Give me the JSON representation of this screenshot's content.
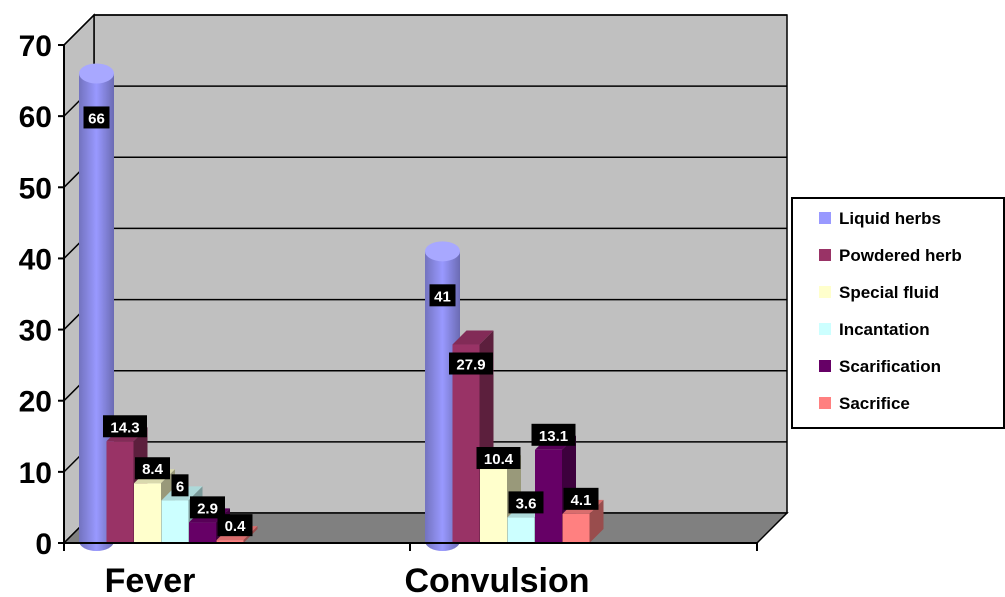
{
  "chart_data": {
    "type": "bar",
    "categories": [
      "Fever",
      "Convulsion"
    ],
    "series": [
      {
        "name": "Liquid herbs",
        "values": [
          66,
          41
        ],
        "color": "#9999ff"
      },
      {
        "name": "Powdered herb",
        "values": [
          14.3,
          27.9
        ],
        "color": "#993366"
      },
      {
        "name": "Special fluid",
        "values": [
          8.4,
          10.4
        ],
        "color": "#ffffcc"
      },
      {
        "name": "Incantation",
        "values": [
          6,
          3.6
        ],
        "color": "#ccffff"
      },
      {
        "name": "Scarification",
        "values": [
          2.9,
          13.1
        ],
        "color": "#660066"
      },
      {
        "name": "Sacrifice",
        "values": [
          0.4,
          4.1
        ],
        "color": "#ff8080"
      }
    ],
    "data_labels": [
      [
        "66",
        "41"
      ],
      [
        "14.3",
        "27.9"
      ],
      [
        "8.4",
        "10.4"
      ],
      [
        "6",
        "3.6"
      ],
      [
        "2.9",
        "13.1"
      ],
      [
        "0.4",
        "4.1"
      ]
    ],
    "y_ticks": [
      "0",
      "10",
      "20",
      "30",
      "40",
      "50",
      "60",
      "70"
    ],
    "ylim": [
      0,
      70
    ],
    "grid": true,
    "legend_position": "right",
    "wall_color": "#c0c0c0",
    "floor_color": "#808080",
    "first_bar_shape": "cylinder"
  }
}
